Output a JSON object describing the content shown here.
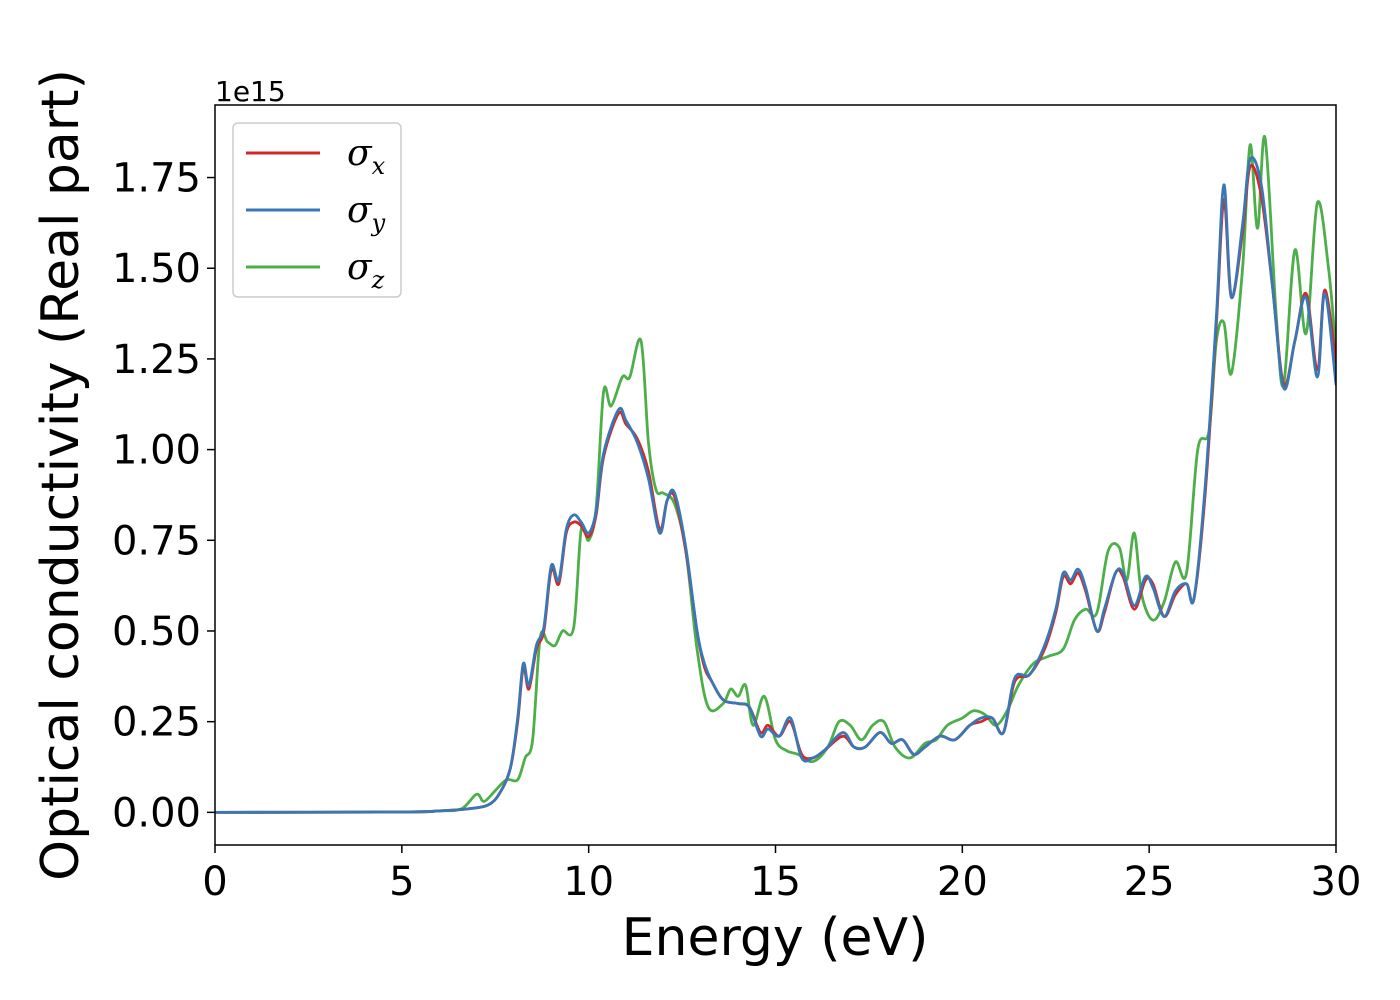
{
  "chart_data": {
    "type": "line",
    "title": "",
    "xlabel": "Energy (eV)",
    "ylabel": "Optical conductivity (Real part)",
    "y_offset_label": "1e15",
    "xlim": [
      0,
      30
    ],
    "ylim": [
      -0.09,
      1.95
    ],
    "x_ticks": [
      0,
      5,
      10,
      15,
      20,
      25,
      30
    ],
    "y_ticks": [
      0.0,
      0.25,
      0.5,
      0.75,
      1.0,
      1.25,
      1.5,
      1.75
    ],
    "x_tick_labels": [
      "0",
      "5",
      "10",
      "15",
      "20",
      "25",
      "30"
    ],
    "y_tick_labels": [
      "0.00",
      "0.25",
      "0.50",
      "0.75",
      "1.00",
      "1.25",
      "1.50",
      "1.75"
    ],
    "grid": false,
    "legend_position": "top-left",
    "series": [
      {
        "name": "σx",
        "symbol": "σ",
        "subscript": "x",
        "color": "#d62728",
        "points": [
          [
            0,
            0
          ],
          [
            5,
            0.001
          ],
          [
            6,
            0.004
          ],
          [
            6.8,
            0.01
          ],
          [
            7.3,
            0.02
          ],
          [
            7.6,
            0.05
          ],
          [
            7.9,
            0.12
          ],
          [
            8.1,
            0.25
          ],
          [
            8.25,
            0.4
          ],
          [
            8.4,
            0.34
          ],
          [
            8.6,
            0.45
          ],
          [
            8.8,
            0.5
          ],
          [
            9.0,
            0.67
          ],
          [
            9.2,
            0.63
          ],
          [
            9.4,
            0.77
          ],
          [
            9.6,
            0.8
          ],
          [
            9.8,
            0.79
          ],
          [
            10.0,
            0.76
          ],
          [
            10.2,
            0.82
          ],
          [
            10.4,
            0.98
          ],
          [
            10.8,
            1.1
          ],
          [
            11.0,
            1.07
          ],
          [
            11.3,
            1.03
          ],
          [
            11.6,
            0.94
          ],
          [
            11.9,
            0.78
          ],
          [
            12.1,
            0.86
          ],
          [
            12.3,
            0.87
          ],
          [
            12.6,
            0.72
          ],
          [
            12.9,
            0.5
          ],
          [
            13.1,
            0.4
          ],
          [
            13.3,
            0.36
          ],
          [
            13.6,
            0.31
          ],
          [
            14.0,
            0.3
          ],
          [
            14.3,
            0.29
          ],
          [
            14.6,
            0.22
          ],
          [
            14.8,
            0.24
          ],
          [
            15.1,
            0.21
          ],
          [
            15.4,
            0.25
          ],
          [
            15.7,
            0.16
          ],
          [
            16.0,
            0.15
          ],
          [
            16.3,
            0.17
          ],
          [
            16.8,
            0.21
          ],
          [
            17.1,
            0.18
          ],
          [
            17.4,
            0.18
          ],
          [
            17.8,
            0.22
          ],
          [
            18.1,
            0.19
          ],
          [
            18.4,
            0.2
          ],
          [
            18.7,
            0.16
          ],
          [
            19.0,
            0.18
          ],
          [
            19.4,
            0.21
          ],
          [
            19.8,
            0.2
          ],
          [
            20.2,
            0.24
          ],
          [
            20.5,
            0.25
          ],
          [
            20.8,
            0.26
          ],
          [
            21.1,
            0.22
          ],
          [
            21.4,
            0.36
          ],
          [
            21.8,
            0.38
          ],
          [
            22.2,
            0.45
          ],
          [
            22.5,
            0.55
          ],
          [
            22.7,
            0.65
          ],
          [
            22.9,
            0.63
          ],
          [
            23.1,
            0.66
          ],
          [
            23.3,
            0.61
          ],
          [
            23.6,
            0.5
          ],
          [
            23.8,
            0.55
          ],
          [
            24.1,
            0.66
          ],
          [
            24.3,
            0.65
          ],
          [
            24.6,
            0.56
          ],
          [
            24.9,
            0.64
          ],
          [
            25.1,
            0.63
          ],
          [
            25.4,
            0.54
          ],
          [
            25.7,
            0.6
          ],
          [
            26.0,
            0.63
          ],
          [
            26.2,
            0.59
          ],
          [
            26.5,
            0.88
          ],
          [
            26.8,
            1.35
          ],
          [
            27.0,
            1.69
          ],
          [
            27.2,
            1.42
          ],
          [
            27.5,
            1.6
          ],
          [
            27.7,
            1.78
          ],
          [
            28.0,
            1.7
          ],
          [
            28.3,
            1.45
          ],
          [
            28.6,
            1.18
          ],
          [
            28.9,
            1.3
          ],
          [
            29.2,
            1.43
          ],
          [
            29.5,
            1.22
          ],
          [
            29.7,
            1.44
          ],
          [
            30.0,
            1.24
          ]
        ]
      },
      {
        "name": "σy",
        "symbol": "σ",
        "subscript": "y",
        "color": "#3a78b5",
        "points": [
          [
            0,
            0
          ],
          [
            5,
            0.001
          ],
          [
            6,
            0.004
          ],
          [
            6.8,
            0.01
          ],
          [
            7.3,
            0.02
          ],
          [
            7.6,
            0.05
          ],
          [
            7.9,
            0.12
          ],
          [
            8.1,
            0.26
          ],
          [
            8.25,
            0.41
          ],
          [
            8.4,
            0.35
          ],
          [
            8.6,
            0.46
          ],
          [
            8.8,
            0.51
          ],
          [
            9.0,
            0.68
          ],
          [
            9.2,
            0.64
          ],
          [
            9.4,
            0.78
          ],
          [
            9.6,
            0.82
          ],
          [
            9.8,
            0.8
          ],
          [
            10.0,
            0.77
          ],
          [
            10.2,
            0.83
          ],
          [
            10.4,
            0.99
          ],
          [
            10.8,
            1.11
          ],
          [
            11.0,
            1.08
          ],
          [
            11.3,
            1.02
          ],
          [
            11.6,
            0.92
          ],
          [
            11.9,
            0.77
          ],
          [
            12.1,
            0.86
          ],
          [
            12.3,
            0.88
          ],
          [
            12.6,
            0.73
          ],
          [
            12.9,
            0.5
          ],
          [
            13.1,
            0.41
          ],
          [
            13.3,
            0.36
          ],
          [
            13.6,
            0.31
          ],
          [
            14.0,
            0.3
          ],
          [
            14.3,
            0.29
          ],
          [
            14.6,
            0.21
          ],
          [
            14.8,
            0.23
          ],
          [
            15.1,
            0.21
          ],
          [
            15.4,
            0.26
          ],
          [
            15.7,
            0.15
          ],
          [
            16.0,
            0.15
          ],
          [
            16.3,
            0.17
          ],
          [
            16.8,
            0.22
          ],
          [
            17.1,
            0.18
          ],
          [
            17.4,
            0.18
          ],
          [
            17.8,
            0.22
          ],
          [
            18.1,
            0.19
          ],
          [
            18.4,
            0.2
          ],
          [
            18.7,
            0.16
          ],
          [
            19.0,
            0.18
          ],
          [
            19.4,
            0.21
          ],
          [
            19.8,
            0.2
          ],
          [
            20.2,
            0.24
          ],
          [
            20.5,
            0.26
          ],
          [
            20.8,
            0.26
          ],
          [
            21.1,
            0.22
          ],
          [
            21.4,
            0.37
          ],
          [
            21.8,
            0.38
          ],
          [
            22.2,
            0.46
          ],
          [
            22.5,
            0.56
          ],
          [
            22.7,
            0.66
          ],
          [
            22.9,
            0.64
          ],
          [
            23.1,
            0.67
          ],
          [
            23.3,
            0.62
          ],
          [
            23.6,
            0.5
          ],
          [
            23.8,
            0.56
          ],
          [
            24.1,
            0.66
          ],
          [
            24.3,
            0.66
          ],
          [
            24.6,
            0.57
          ],
          [
            24.9,
            0.65
          ],
          [
            25.1,
            0.62
          ],
          [
            25.4,
            0.54
          ],
          [
            25.7,
            0.61
          ],
          [
            26.0,
            0.63
          ],
          [
            26.2,
            0.59
          ],
          [
            26.5,
            0.9
          ],
          [
            26.8,
            1.37
          ],
          [
            27.0,
            1.73
          ],
          [
            27.2,
            1.42
          ],
          [
            27.5,
            1.62
          ],
          [
            27.7,
            1.8
          ],
          [
            28.0,
            1.73
          ],
          [
            28.3,
            1.45
          ],
          [
            28.6,
            1.17
          ],
          [
            28.9,
            1.3
          ],
          [
            29.2,
            1.42
          ],
          [
            29.5,
            1.2
          ],
          [
            29.7,
            1.43
          ],
          [
            30.0,
            1.18
          ]
        ]
      },
      {
        "name": "σz",
        "symbol": "σ",
        "subscript": "z",
        "color": "#4daf4a",
        "points": [
          [
            0,
            0
          ],
          [
            5,
            0.001
          ],
          [
            6,
            0.004
          ],
          [
            6.6,
            0.01
          ],
          [
            7.0,
            0.05
          ],
          [
            7.2,
            0.03
          ],
          [
            7.5,
            0.06
          ],
          [
            7.8,
            0.09
          ],
          [
            8.1,
            0.09
          ],
          [
            8.3,
            0.15
          ],
          [
            8.5,
            0.2
          ],
          [
            8.7,
            0.48
          ],
          [
            8.9,
            0.47
          ],
          [
            9.1,
            0.46
          ],
          [
            9.3,
            0.5
          ],
          [
            9.6,
            0.51
          ],
          [
            9.8,
            0.78
          ],
          [
            10.0,
            0.75
          ],
          [
            10.2,
            0.84
          ],
          [
            10.4,
            1.16
          ],
          [
            10.6,
            1.12
          ],
          [
            10.9,
            1.2
          ],
          [
            11.1,
            1.2
          ],
          [
            11.4,
            1.3
          ],
          [
            11.6,
            1.02
          ],
          [
            11.8,
            0.89
          ],
          [
            12.0,
            0.88
          ],
          [
            12.3,
            0.85
          ],
          [
            12.6,
            0.72
          ],
          [
            12.9,
            0.45
          ],
          [
            13.2,
            0.29
          ],
          [
            13.6,
            0.3
          ],
          [
            13.8,
            0.34
          ],
          [
            14.0,
            0.32
          ],
          [
            14.2,
            0.35
          ],
          [
            14.4,
            0.24
          ],
          [
            14.7,
            0.32
          ],
          [
            15.0,
            0.2
          ],
          [
            15.3,
            0.17
          ],
          [
            15.6,
            0.16
          ],
          [
            16.0,
            0.14
          ],
          [
            16.4,
            0.18
          ],
          [
            16.7,
            0.25
          ],
          [
            17.0,
            0.24
          ],
          [
            17.3,
            0.2
          ],
          [
            17.6,
            0.24
          ],
          [
            17.9,
            0.25
          ],
          [
            18.2,
            0.18
          ],
          [
            18.6,
            0.15
          ],
          [
            19.0,
            0.19
          ],
          [
            19.3,
            0.2
          ],
          [
            19.6,
            0.24
          ],
          [
            20.0,
            0.26
          ],
          [
            20.3,
            0.28
          ],
          [
            20.6,
            0.27
          ],
          [
            20.9,
            0.24
          ],
          [
            21.2,
            0.28
          ],
          [
            21.5,
            0.35
          ],
          [
            21.9,
            0.41
          ],
          [
            22.3,
            0.43
          ],
          [
            22.7,
            0.45
          ],
          [
            23.0,
            0.53
          ],
          [
            23.3,
            0.56
          ],
          [
            23.6,
            0.55
          ],
          [
            23.9,
            0.72
          ],
          [
            24.2,
            0.73
          ],
          [
            24.4,
            0.64
          ],
          [
            24.6,
            0.77
          ],
          [
            24.8,
            0.6
          ],
          [
            25.1,
            0.53
          ],
          [
            25.4,
            0.58
          ],
          [
            25.7,
            0.69
          ],
          [
            26.0,
            0.66
          ],
          [
            26.3,
            1.0
          ],
          [
            26.6,
            1.05
          ],
          [
            26.8,
            1.3
          ],
          [
            27.0,
            1.35
          ],
          [
            27.2,
            1.21
          ],
          [
            27.5,
            1.5
          ],
          [
            27.7,
            1.84
          ],
          [
            27.9,
            1.61
          ],
          [
            28.1,
            1.86
          ],
          [
            28.4,
            1.37
          ],
          [
            28.6,
            1.18
          ],
          [
            28.9,
            1.55
          ],
          [
            29.2,
            1.32
          ],
          [
            29.5,
            1.68
          ],
          [
            29.8,
            1.5
          ],
          [
            30.0,
            1.27
          ]
        ]
      }
    ]
  }
}
